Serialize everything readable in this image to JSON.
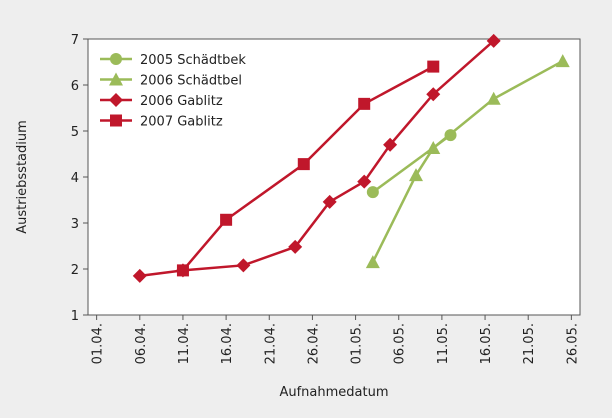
{
  "chart_data": {
    "type": "line",
    "x_label": "Aufnahmedatum",
    "y_label": "Austriebsstadium",
    "xlim": [
      "31.03.",
      "27.05."
    ],
    "xticks": [
      "01.04.",
      "06.04.",
      "11.04.",
      "16.04.",
      "21.04.",
      "26.04.",
      "01.05.",
      "06.05.",
      "11.05.",
      "16.05.",
      "21.05.",
      "26.05."
    ],
    "ylim": [
      1,
      7
    ],
    "yticks": [
      1,
      2,
      3,
      4,
      5,
      6,
      7
    ],
    "series": [
      {
        "name": "2005 Schädtbek",
        "color": "#9bbb59",
        "marker": "circle",
        "x": [
          "03.05.",
          "12.05."
        ],
        "values": [
          3.67,
          4.91
        ]
      },
      {
        "name": "2006 Schädtbel",
        "color": "#9bbb59",
        "marker": "triangle",
        "x": [
          "03.05.",
          "08.05.",
          "10.05.",
          "17.05.",
          "25.05."
        ],
        "values": [
          2.15,
          4.04,
          4.63,
          5.7,
          6.52
        ]
      },
      {
        "name": "2006 Gablitz",
        "color": "#c0172b",
        "marker": "diamond",
        "x": [
          "06.04.",
          "11.04.",
          "18.04.",
          "24.04.",
          "28.04.",
          "02.05.",
          "05.05.",
          "10.05.",
          "17.05."
        ],
        "values": [
          1.85,
          1.97,
          2.08,
          2.48,
          3.46,
          3.9,
          4.7,
          5.8,
          6.96
        ]
      },
      {
        "name": "2007 Gablitz",
        "color": "#c0172b",
        "marker": "square",
        "x": [
          "11.04.",
          "16.04.",
          "25.04.",
          "02.05.",
          "10.05."
        ],
        "values": [
          1.97,
          3.07,
          4.28,
          5.59,
          6.4
        ]
      }
    ]
  }
}
